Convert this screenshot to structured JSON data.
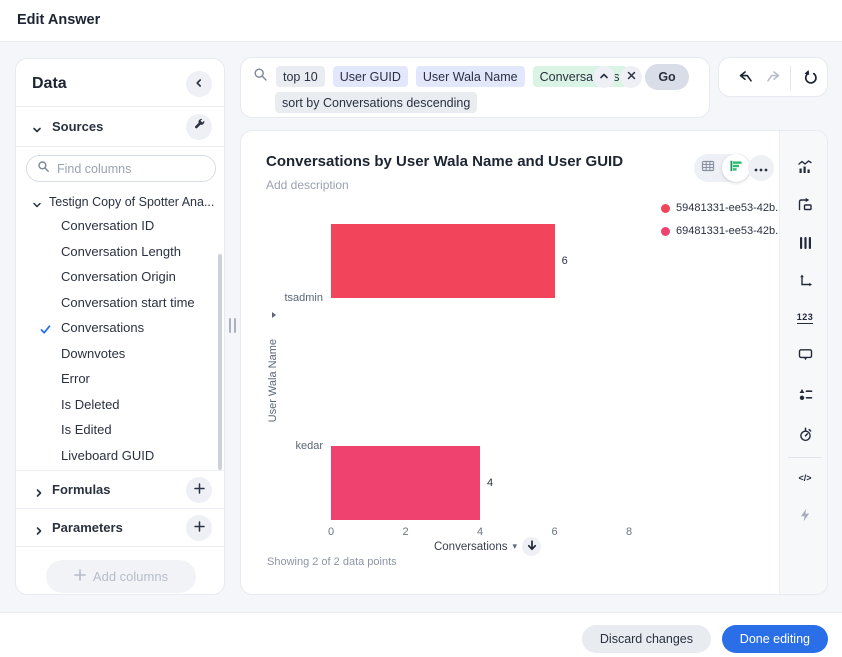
{
  "window": {
    "title": "Edit Answer"
  },
  "sidebar": {
    "title": "Data",
    "sources": "Sources",
    "find_placeholder": "Find columns",
    "table": "Testign Copy of Spotter Ana...",
    "columns": [
      {
        "label": "Conversation ID",
        "selected": false
      },
      {
        "label": "Conversation Length",
        "selected": false
      },
      {
        "label": "Conversation Origin",
        "selected": false
      },
      {
        "label": "Conversation start time",
        "selected": false
      },
      {
        "label": "Conversations",
        "selected": true
      },
      {
        "label": "Downvotes",
        "selected": false
      },
      {
        "label": "Error",
        "selected": false
      },
      {
        "label": "Is Deleted",
        "selected": false
      },
      {
        "label": "Is Edited",
        "selected": false
      },
      {
        "label": "Liveboard GUID",
        "selected": false
      }
    ],
    "formulas": "Formulas",
    "parameters": "Parameters",
    "add_columns": "Add columns"
  },
  "search": {
    "tokens": {
      "t1": "top 10",
      "t2": "User GUID",
      "t3": "User Wala Name",
      "t4": "Conversations",
      "t5": "sort by Conversations descending"
    },
    "go": "Go"
  },
  "answer": {
    "title": "Conversations by User Wala Name and User GUID",
    "description_placeholder": "Add description",
    "showing": "Showing 2 of 2 data points"
  },
  "chart_data": {
    "type": "bar",
    "orientation": "horizontal",
    "title": "Conversations by User Wala Name and User GUID",
    "categories": [
      "tsadmin",
      "kedar"
    ],
    "series": [
      {
        "name": "59481331-ee53-42b...",
        "color": "#f2455c",
        "values": [
          6,
          0
        ]
      },
      {
        "name": "69481331-ee53-42b...",
        "color": "#f0426e",
        "values": [
          0,
          4
        ]
      }
    ],
    "xlabel": "Conversations",
    "ylabel": "User Wala Name",
    "xlim": [
      0,
      8.4
    ],
    "xticks": [
      0,
      2,
      4,
      6,
      8
    ],
    "grid": false,
    "legend_position": "top-right",
    "value_labels": true
  },
  "right_toolbar": {
    "icons": [
      "change-visualization",
      "save-to-liveboard",
      "edit-columns",
      "axis-settings",
      "number-format",
      "tooltip-settings",
      "chart-properties",
      "timer",
      "code-view",
      "spotiq-lightning"
    ]
  },
  "footer": {
    "discard": "Discard changes",
    "done": "Done editing"
  },
  "colors": {
    "accent_blue": "#2b6fe8",
    "series_red": "#f2455c",
    "series_pink": "#f0426e",
    "chip_attribute": "#e2e7fb",
    "chip_measure": "#d9f3e4",
    "chip_keyword": "#e9ecf1",
    "toggle_active_green": "#2bbd6e"
  }
}
